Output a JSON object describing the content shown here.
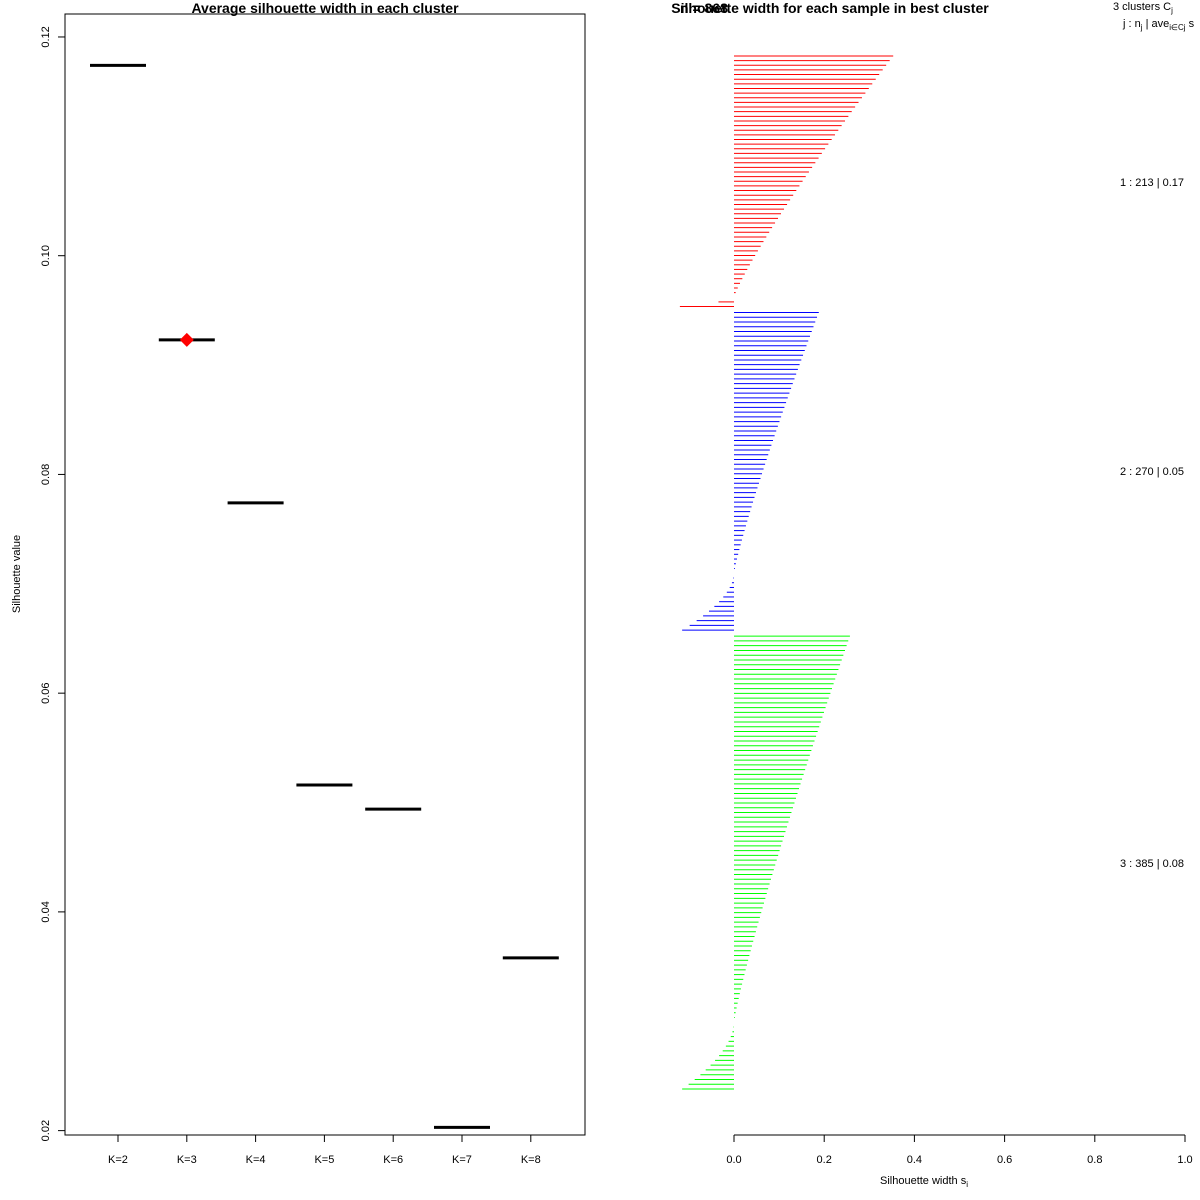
{
  "chart_data": [
    {
      "type": "scatter",
      "title": "Average silhouette width in each cluster",
      "xlabel": "",
      "ylabel": "Silhouette value",
      "categories": [
        "K=2",
        "K=3",
        "K=4",
        "K=5",
        "K=6",
        "K=7",
        "K=8"
      ],
      "values": [
        0.1174,
        0.0923,
        0.0774,
        0.0516,
        0.0494,
        0.0203,
        0.0358
      ],
      "best": "K=3",
      "ylim": [
        0.0196,
        0.1221
      ],
      "yticks": [
        "0.02",
        "0.04",
        "0.06",
        "0.08",
        "0.10",
        "0.12"
      ],
      "colors": {
        "bar": "#000000",
        "best_marker": "#ff0000"
      }
    },
    {
      "type": "bar",
      "title": "Silhouette width for each sample in best cluster",
      "overlapping_title": "n = 868",
      "xlabel": "Silhouette width s",
      "xlabel_sub": "i",
      "xlim": [
        0,
        1
      ],
      "xticks": [
        "0.0",
        "0.2",
        "0.4",
        "0.6",
        "0.8",
        "1.0"
      ],
      "legend": {
        "header_main": "3  clusters  C",
        "header_main_sub": "j",
        "header_cols": "j :  n",
        "header_cols_sub": "j",
        "header_cols_ave": "| ave",
        "header_cols_ave_sub": "i∈Cj",
        "header_cols_tail": "s",
        "rows": [
          "1 :   213  |  0.17",
          "2 :   270  |  0.05",
          "3 :   385  |  0.08"
        ]
      },
      "series": [
        {
          "name": "1",
          "n": 213,
          "average": 0.17,
          "color": "#ff0000",
          "max": 0.353,
          "min": -0.12,
          "pos": 0.96,
          "samples": 55
        },
        {
          "name": "2",
          "n": 270,
          "average": 0.05,
          "color": "#0000ff",
          "max": 0.188,
          "min": -0.115,
          "pos": 0.83,
          "samples": 68
        },
        {
          "name": "3",
          "n": 385,
          "average": 0.08,
          "color": "#00ff00",
          "max": 0.257,
          "min": -0.115,
          "pos": 0.85,
          "samples": 96
        }
      ]
    }
  ]
}
